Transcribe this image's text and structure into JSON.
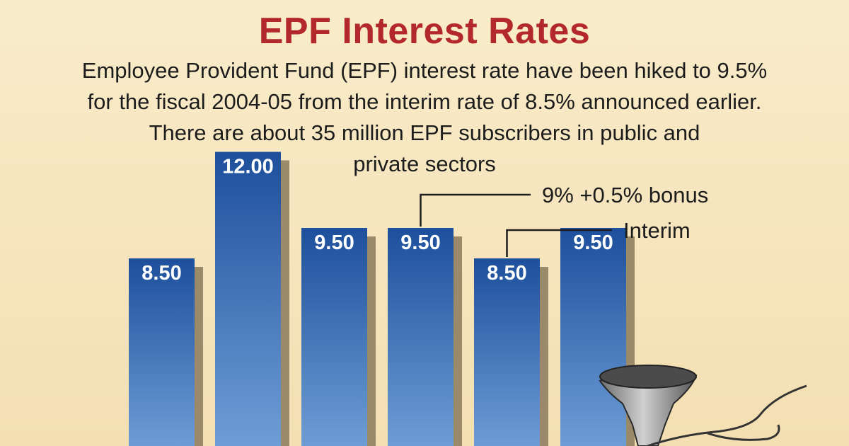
{
  "colors": {
    "background": "#f6e6bf",
    "title": "#b3282b",
    "bar_top": "#1d4f9c",
    "bar_bottom": "#6f9ed6",
    "bar_shadow": "#9a8a6a"
  },
  "header": {
    "title": "EPF Interest Rates",
    "description_lines": [
      "Employee Provident Fund (EPF) interest rate have been hiked to 9.5%",
      "for the fiscal 2004-05 from the interim rate of 8.5% announced earlier.",
      "There are about 35 million EPF subscribers in public and",
      "private sectors"
    ]
  },
  "chart_data": {
    "type": "bar",
    "title": "EPF Interest Rates",
    "values": [
      8.5,
      12.0,
      9.5,
      9.5,
      8.5,
      9.5
    ],
    "value_labels": [
      "8.50",
      "12.00",
      "9.50",
      "9.50",
      "8.50",
      "9.50"
    ],
    "annotations": [
      {
        "bar_index": 3,
        "text": "9% +0.5% bonus"
      },
      {
        "bar_index": 4,
        "text": "Interim"
      }
    ],
    "grid": false,
    "legend": "none"
  },
  "decoration": {
    "icon": "funnel-icon"
  }
}
